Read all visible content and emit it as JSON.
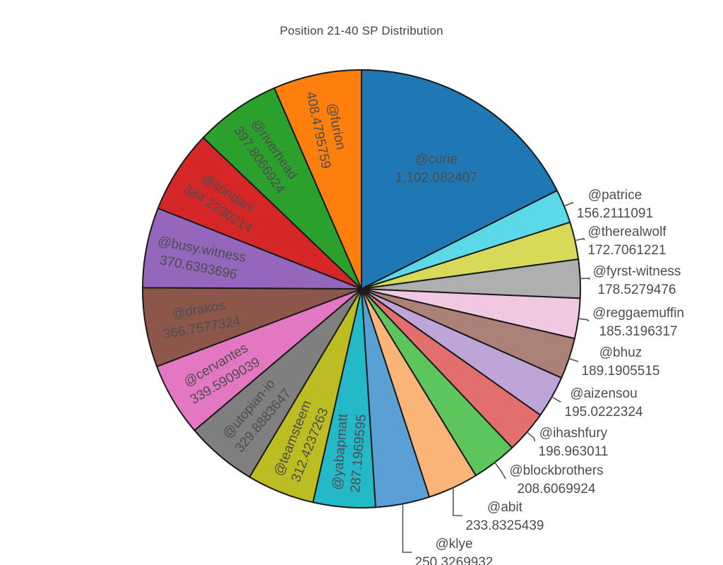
{
  "title": "Position 21-40 SP Distribution",
  "chart_data": {
    "type": "pie",
    "title": "Position 21-40 SP Distribution",
    "legend": "none",
    "grid": "off",
    "background": "#ffffff",
    "title_color": "#444444",
    "label_color": "#4d4d4d",
    "slice_outline": "#1a1a1a",
    "leader_color": "#555555",
    "order": "clockwise from 12 o'clock: largest slice first, remaining slices ascending",
    "slices": [
      {
        "label": "@curie",
        "value": 1102.082407,
        "display": "1,102.082407",
        "color": "#1f77b4",
        "label_placement": "inside",
        "label_rotation": "horizontal"
      },
      {
        "label": "@patrice",
        "value": 156.2111091,
        "display": "156.2111091",
        "color": "#5bd9e9",
        "label_placement": "outside",
        "label_rotation": "horizontal"
      },
      {
        "label": "@therealwolf",
        "value": 172.7061221,
        "display": "172.7061221",
        "color": "#d7da58",
        "label_placement": "outside",
        "label_rotation": "horizontal"
      },
      {
        "label": "@fyrst-witness",
        "value": 178.5279476,
        "display": "178.5279476",
        "color": "#afafaf",
        "label_placement": "outside",
        "label_rotation": "horizontal"
      },
      {
        "label": "@reggaemuffin",
        "value": 185.3196317,
        "display": "185.3196317",
        "color": "#f0c8e1",
        "label_placement": "outside",
        "label_rotation": "horizontal"
      },
      {
        "label": "@bhuz",
        "value": 189.1905515,
        "display": "189.1905515",
        "color": "#ac8278",
        "label_placement": "outside",
        "label_rotation": "horizontal"
      },
      {
        "label": "@aizensou",
        "value": 195.0222324,
        "display": "195.0222324",
        "color": "#bea5d7",
        "label_placement": "outside",
        "label_rotation": "horizontal"
      },
      {
        "label": "@ihashfury",
        "value": 196.963011,
        "display": "196.963011",
        "color": "#e26e6e",
        "label_placement": "outside",
        "label_rotation": "horizontal"
      },
      {
        "label": "@blockbrothers",
        "value": 208.6069924,
        "display": "208.6069924",
        "color": "#5cc55c",
        "label_placement": "outside",
        "label_rotation": "horizontal"
      },
      {
        "label": "@abit",
        "value": 233.8325439,
        "display": "233.8325439",
        "color": "#fab478",
        "label_placement": "outside",
        "label_rotation": "horizontal"
      },
      {
        "label": "@klye",
        "value": 250.3269932,
        "display": "250.3269932",
        "color": "#5aa0d4",
        "label_placement": "outside",
        "label_rotation": "horizontal"
      },
      {
        "label": "@yabapmatt",
        "value": 287.1969595,
        "display": "287.1969595",
        "color": "#23b9c8",
        "label_placement": "inside",
        "label_rotation": "radial"
      },
      {
        "label": "@teamsteem",
        "value": 312.4237263,
        "display": "312.4237263",
        "color": "#bcbd22",
        "label_placement": "inside",
        "label_rotation": "radial"
      },
      {
        "label": "@utopian-io",
        "value": 329.8883647,
        "display": "329.8883647",
        "color": "#7f7f7f",
        "label_placement": "inside",
        "label_rotation": "radial"
      },
      {
        "label": "@cervantes",
        "value": 339.5909039,
        "display": "339.5909039",
        "color": "#e377c2",
        "label_placement": "inside",
        "label_rotation": "radial"
      },
      {
        "label": "@drakos",
        "value": 366.7577324,
        "display": "366.7577324",
        "color": "#8c564b",
        "label_placement": "inside",
        "label_rotation": "radial"
      },
      {
        "label": "@busy.witness",
        "value": 370.6393696,
        "display": "370.6393696",
        "color": "#9467bd",
        "label_placement": "inside",
        "label_rotation": "radial"
      },
      {
        "label": "@liondani",
        "value": 384.2230214,
        "display": "384.2230214",
        "color": "#d62728",
        "label_placement": "inside",
        "label_rotation": "radial"
      },
      {
        "label": "@riverhead",
        "value": 397.8066924,
        "display": "397.8066924",
        "color": "#2ca02c",
        "label_placement": "inside",
        "label_rotation": "radial"
      },
      {
        "label": "@furion",
        "value": 408.4795759,
        "display": "408.4795759",
        "color": "#ff7f0e",
        "label_placement": "inside",
        "label_rotation": "radial"
      }
    ]
  }
}
